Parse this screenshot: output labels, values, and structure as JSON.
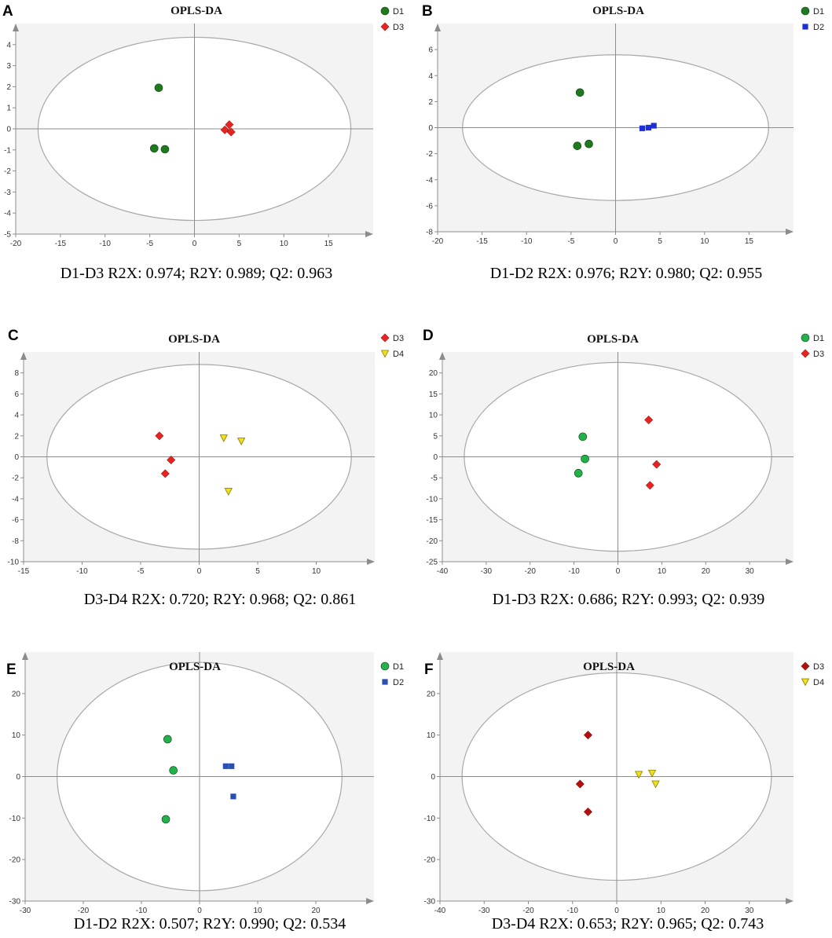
{
  "chart_data": [
    {
      "type": "scatter",
      "panel_label": "A",
      "title": "OPLS-DA",
      "caption": "D1-D3 R2X: 0.974; R2Y: 0.989; Q2: 0.963",
      "xlim": [
        -20,
        20
      ],
      "ylim": [
        -5,
        5
      ],
      "xticks": [
        -20,
        -15,
        -10,
        -5,
        0,
        5,
        10,
        15
      ],
      "yticks": [
        -5,
        -4,
        -3,
        -2,
        -1,
        0,
        1,
        2,
        3,
        4
      ],
      "ellipse": {
        "rx": 17.5,
        "ry": 4.35
      },
      "series": [
        {
          "name": "D1",
          "marker": "circle",
          "color": "#1f7a1f",
          "points": [
            [
              -4,
              1.95
            ],
            [
              -4.5,
              -0.93
            ],
            [
              -3.3,
              -0.97
            ]
          ]
        },
        {
          "name": "D3",
          "marker": "diamond",
          "color": "#e8231f",
          "points": [
            [
              3.4,
              -0.05
            ],
            [
              3.9,
              0.2
            ],
            [
              4.1,
              -0.15
            ]
          ]
        }
      ]
    },
    {
      "type": "scatter",
      "panel_label": "B",
      "title": "OPLS-DA",
      "caption": "D1-D2 R2X: 0.976; R2Y: 0.980; Q2: 0.955",
      "xlim": [
        -20,
        20
      ],
      "ylim": [
        -8,
        8
      ],
      "xticks": [
        -20,
        -15,
        -10,
        -5,
        0,
        5,
        10,
        15
      ],
      "yticks": [
        -8,
        -6,
        -4,
        -2,
        0,
        2,
        4,
        6
      ],
      "ellipse": {
        "rx": 17.2,
        "ry": 5.6
      },
      "series": [
        {
          "name": "D1",
          "marker": "circle",
          "color": "#1f7a1f",
          "points": [
            [
              -4,
              2.7
            ],
            [
              -4.3,
              -1.4
            ],
            [
              -3,
              -1.25
            ]
          ]
        },
        {
          "name": "D2",
          "marker": "square",
          "color": "#1f2fd6",
          "points": [
            [
              3,
              -0.05
            ],
            [
              3.7,
              0
            ],
            [
              4.3,
              0.15
            ]
          ]
        }
      ]
    },
    {
      "type": "scatter",
      "panel_label": "C",
      "title": "OPLS-DA",
      "caption": "D3-D4 R2X: 0.720; R2Y: 0.968; Q2: 0.861",
      "xlim": [
        -15,
        15
      ],
      "ylim": [
        -10,
        10
      ],
      "xticks": [
        -15,
        -10,
        -5,
        0,
        5,
        10
      ],
      "yticks": [
        -10,
        -8,
        -6,
        -4,
        -2,
        0,
        2,
        4,
        6,
        8
      ],
      "ellipse": {
        "rx": 13,
        "ry": 8.8
      },
      "series": [
        {
          "name": "D3",
          "marker": "diamond",
          "color": "#e8231f",
          "points": [
            [
              -3.4,
              2
            ],
            [
              -2.4,
              -0.3
            ],
            [
              -2.9,
              -1.6
            ]
          ]
        },
        {
          "name": "D4",
          "marker": "triangle-down",
          "color": "#f0e020",
          "points": [
            [
              2.1,
              1.8
            ],
            [
              3.6,
              1.5
            ],
            [
              2.5,
              -3.3
            ]
          ]
        }
      ]
    },
    {
      "type": "scatter",
      "panel_label": "D",
      "title": "OPLS-DA",
      "caption": "D1-D3 R2X: 0.686; R2Y: 0.993; Q2: 0.939",
      "xlim": [
        -40,
        40
      ],
      "ylim": [
        -25,
        25
      ],
      "xticks": [
        -40,
        -30,
        -20,
        -10,
        0,
        10,
        20,
        30
      ],
      "yticks": [
        -25,
        -20,
        -15,
        -10,
        -5,
        0,
        5,
        10,
        15,
        20
      ],
      "ellipse": {
        "rx": 35,
        "ry": 22.5
      },
      "series": [
        {
          "name": "D1",
          "marker": "circle",
          "color": "#22b14c",
          "points": [
            [
              -8,
              4.8
            ],
            [
              -7.5,
              -0.5
            ],
            [
              -9,
              -3.9
            ]
          ]
        },
        {
          "name": "D3",
          "marker": "diamond",
          "color": "#e8231f",
          "points": [
            [
              7,
              8.8
            ],
            [
              8.8,
              -1.8
            ],
            [
              7.3,
              -6.8
            ]
          ]
        }
      ]
    },
    {
      "type": "scatter",
      "panel_label": "E",
      "title": "OPLS-DA",
      "caption": "D1-D2 R2X: 0.507; R2Y: 0.990; Q2: 0.534",
      "xlim": [
        -30,
        30
      ],
      "ylim": [
        -30,
        30
      ],
      "xticks": [
        -30,
        -20,
        -10,
        0,
        10,
        20
      ],
      "yticks": [
        -30,
        -20,
        -10,
        0,
        10,
        20
      ],
      "ellipse": {
        "rx": 24.5,
        "ry": 27.5
      },
      "series": [
        {
          "name": "D1",
          "marker": "circle",
          "color": "#22b14c",
          "points": [
            [
              -5.5,
              9
            ],
            [
              -4.5,
              1.5
            ],
            [
              -5.8,
              -10.3
            ]
          ]
        },
        {
          "name": "D2",
          "marker": "square",
          "color": "#2a4fb0",
          "points": [
            [
              4.5,
              2.5
            ],
            [
              5.5,
              2.5
            ],
            [
              5.8,
              -4.8
            ]
          ]
        }
      ]
    },
    {
      "type": "scatter",
      "panel_label": "F",
      "title": "OPLS-DA",
      "caption": "D3-D4 R2X: 0.653; R2Y: 0.965; Q2: 0.743",
      "xlim": [
        -40,
        40
      ],
      "ylim": [
        -30,
        30
      ],
      "xticks": [
        -40,
        -30,
        -20,
        -10,
        0,
        10,
        20,
        30
      ],
      "yticks": [
        -30,
        -20,
        -10,
        0,
        10,
        20
      ],
      "ellipse": {
        "rx": 35,
        "ry": 25
      },
      "series": [
        {
          "name": "D3",
          "marker": "diamond",
          "color": "#b01010",
          "points": [
            [
              -6.5,
              10
            ],
            [
              -8.3,
              -1.8
            ],
            [
              -6.5,
              -8.5
            ]
          ]
        },
        {
          "name": "D4",
          "marker": "triangle-down",
          "color": "#f0e020",
          "points": [
            [
              5,
              0.5
            ],
            [
              8,
              0.8
            ],
            [
              8.8,
              -1.8
            ]
          ]
        }
      ]
    }
  ]
}
